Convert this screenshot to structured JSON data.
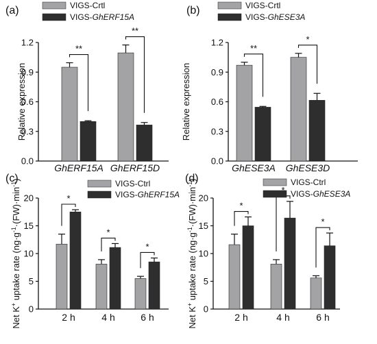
{
  "colors": {
    "ctrl": "#a3a3a6",
    "treat": "#2e2e2e",
    "axis": "#111111"
  },
  "chart_data": [
    {
      "panel_label": "(a)",
      "type": "bar",
      "ylabel": "Relative expression",
      "ylim": [
        0,
        1.2
      ],
      "yticks": [
        "0.0",
        "0.3",
        "0.6",
        "0.9",
        "1.2"
      ],
      "categories": [
        "GhERF15A",
        "GhERF15D"
      ],
      "category_italic": true,
      "legend": {
        "placement": "top",
        "entries": [
          {
            "prefix": "VIGS-Crtl",
            "gene": ""
          },
          {
            "prefix": "VIGS-",
            "gene": "GhERF15A"
          }
        ]
      },
      "series": [
        {
          "values": [
            0.95,
            1.095
          ],
          "errors": [
            0.045,
            0.08
          ]
        },
        {
          "values": [
            0.4,
            0.365
          ],
          "errors": [
            0.008,
            0.025
          ]
        }
      ],
      "significance": [
        "**",
        "**"
      ]
    },
    {
      "panel_label": "(b)",
      "type": "bar",
      "ylabel": "Relative expression",
      "ylim": [
        0,
        1.2
      ],
      "yticks": [
        "0.0",
        "0.3",
        "0.6",
        "0.9",
        "1.2"
      ],
      "categories": [
        "GhESE3A",
        "GhESE3D"
      ],
      "category_italic": true,
      "legend": {
        "placement": "top",
        "entries": [
          {
            "prefix": "VIGS-Crtl",
            "gene": ""
          },
          {
            "prefix": "VIGS-",
            "gene": "GhESE3A"
          }
        ]
      },
      "series": [
        {
          "values": [
            0.97,
            1.05
          ],
          "errors": [
            0.03,
            0.04
          ]
        },
        {
          "values": [
            0.545,
            0.615
          ],
          "errors": [
            0.008,
            0.07
          ]
        }
      ],
      "significance": [
        "**",
        "*"
      ]
    },
    {
      "panel_label": "(c)",
      "type": "bar",
      "ylabel": "Net K+ uptake rate (ng·g-1·(FW)·min-1)",
      "ylim": [
        0,
        20
      ],
      "yticks": [
        "0",
        "5",
        "10",
        "15",
        "20"
      ],
      "categories": [
        "2 h",
        "4 h",
        "6 h"
      ],
      "category_italic": false,
      "legend": {
        "placement": "top-right",
        "entries": [
          {
            "prefix": "VIGS-Ctrl",
            "gene": ""
          },
          {
            "prefix": "VIGS-",
            "gene": "GhERF15A"
          }
        ]
      },
      "series": [
        {
          "values": [
            11.7,
            8.1,
            5.5
          ],
          "errors": [
            1.8,
            0.8,
            0.4
          ]
        },
        {
          "values": [
            17.5,
            11.1,
            8.5
          ],
          "errors": [
            0.4,
            0.7,
            0.7
          ]
        }
      ],
      "significance": [
        "*",
        "*",
        "*"
      ]
    },
    {
      "panel_label": "(d)",
      "type": "bar",
      "ylabel": "Net K+ uptake rate (ng·g-1·(FW)·min-1)",
      "ylim": [
        0,
        20
      ],
      "yticks": [
        "0",
        "5",
        "10",
        "15",
        "20"
      ],
      "categories": [
        "2 h",
        "4 h",
        "6 h"
      ],
      "category_italic": false,
      "legend": {
        "placement": "top-right",
        "entries": [
          {
            "prefix": "VIGS-Ctrl",
            "gene": ""
          },
          {
            "prefix": "VIGS-",
            "gene": "GhESE3A"
          }
        ]
      },
      "series": [
        {
          "values": [
            11.6,
            8.1,
            5.6
          ],
          "errors": [
            1.9,
            0.8,
            0.4
          ]
        },
        {
          "values": [
            15.0,
            16.4,
            11.4
          ],
          "errors": [
            1.6,
            3.0,
            2.3
          ]
        }
      ],
      "significance": [
        "*",
        "*",
        "*"
      ]
    }
  ]
}
